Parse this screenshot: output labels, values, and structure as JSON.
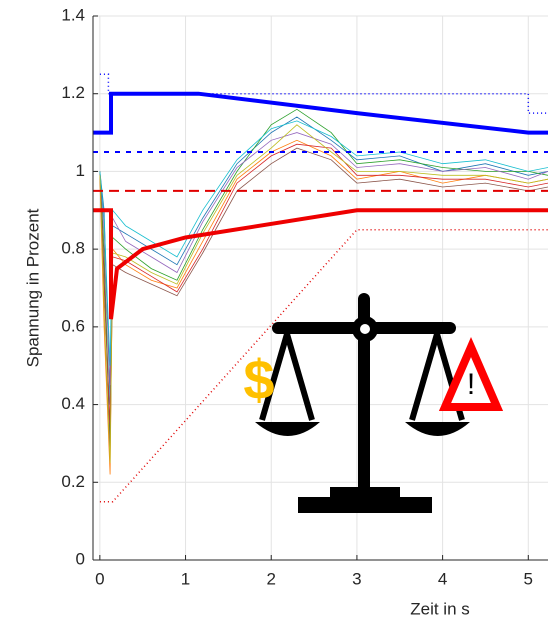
{
  "chart_data": {
    "type": "line",
    "xlabel": "Zeit in s",
    "ylabel": "Spannung  in Prozent",
    "xlim": [
      -0.08,
      5.23
    ],
    "ylim": [
      0,
      1.4
    ],
    "xticks": [
      0,
      1,
      2,
      3,
      4,
      5
    ],
    "yticks": [
      0,
      0.2,
      0.4,
      0.6,
      0.8,
      1,
      1.2,
      1.4
    ],
    "grid": true,
    "annotations": [
      "$",
      "!"
    ],
    "series": [
      {
        "color": "#1f77b4",
        "width": 0.8,
        "x": [
          0,
          0.05,
          0.12,
          0.15,
          0.3,
          0.6,
          0.9,
          1.2,
          1.6,
          2,
          2.3,
          2.7,
          3,
          3.5,
          4,
          4.5,
          5,
          5.23
        ],
        "values": [
          1.0,
          0.9,
          0.4,
          0.86,
          0.84,
          0.8,
          0.76,
          0.88,
          1.02,
          1.1,
          1.14,
          1.08,
          1.03,
          1.04,
          1.0,
          1.02,
          0.99,
          1.0
        ]
      },
      {
        "color": "#ff7f0e",
        "width": 0.8,
        "x": [
          0,
          0.05,
          0.12,
          0.15,
          0.3,
          0.6,
          0.9,
          1.2,
          1.6,
          2,
          2.3,
          2.7,
          3,
          3.5,
          4,
          4.5,
          5,
          5.23
        ],
        "values": [
          0.98,
          0.6,
          0.22,
          0.8,
          0.76,
          0.72,
          0.7,
          0.82,
          0.98,
          1.05,
          1.08,
          1.04,
          0.98,
          1.0,
          0.97,
          0.99,
          0.97,
          0.98
        ]
      },
      {
        "color": "#2ca02c",
        "width": 0.8,
        "x": [
          0,
          0.05,
          0.12,
          0.15,
          0.3,
          0.6,
          0.9,
          1.2,
          1.6,
          2,
          2.3,
          2.7,
          3,
          3.5,
          4,
          4.5,
          5,
          5.23
        ],
        "values": [
          1.0,
          0.8,
          0.3,
          0.83,
          0.8,
          0.75,
          0.72,
          0.85,
          1.0,
          1.12,
          1.16,
          1.1,
          1.02,
          1.03,
          1.01,
          1.0,
          1.0,
          0.99
        ]
      },
      {
        "color": "#d62728",
        "width": 0.8,
        "x": [
          0,
          0.05,
          0.12,
          0.15,
          0.3,
          0.6,
          0.9,
          1.2,
          1.6,
          2,
          2.3,
          2.7,
          3,
          3.5,
          4,
          4.5,
          5,
          5.23
        ],
        "values": [
          0.99,
          0.7,
          0.35,
          0.78,
          0.77,
          0.73,
          0.69,
          0.8,
          0.97,
          1.04,
          1.07,
          1.06,
          0.99,
          0.99,
          0.98,
          0.98,
          0.96,
          0.97
        ]
      },
      {
        "color": "#9467bd",
        "width": 0.8,
        "x": [
          0,
          0.05,
          0.12,
          0.15,
          0.3,
          0.6,
          0.9,
          1.2,
          1.6,
          2,
          2.3,
          2.7,
          3,
          3.5,
          4,
          4.5,
          5,
          5.23
        ],
        "values": [
          1.0,
          0.85,
          0.45,
          0.88,
          0.82,
          0.78,
          0.74,
          0.87,
          1.01,
          1.08,
          1.1,
          1.07,
          1.01,
          1.02,
          1.0,
          1.01,
          0.98,
          1.0
        ]
      },
      {
        "color": "#8c564b",
        "width": 0.8,
        "x": [
          0,
          0.05,
          0.12,
          0.15,
          0.3,
          0.6,
          0.9,
          1.2,
          1.6,
          2,
          2.3,
          2.7,
          3,
          3.5,
          4,
          4.5,
          5,
          5.23
        ],
        "values": [
          1.0,
          0.75,
          0.28,
          0.76,
          0.74,
          0.71,
          0.68,
          0.79,
          0.95,
          1.02,
          1.06,
          1.03,
          0.97,
          0.98,
          0.96,
          0.97,
          0.95,
          0.96
        ]
      },
      {
        "color": "#17becf",
        "width": 0.8,
        "x": [
          0,
          0.05,
          0.12,
          0.15,
          0.3,
          0.6,
          0.9,
          1.2,
          1.6,
          2,
          2.3,
          2.7,
          3,
          3.5,
          4,
          4.5,
          5,
          5.23
        ],
        "values": [
          1.0,
          0.88,
          0.5,
          0.9,
          0.86,
          0.82,
          0.78,
          0.9,
          1.03,
          1.11,
          1.13,
          1.09,
          1.04,
          1.05,
          1.02,
          1.03,
          1.0,
          1.01
        ]
      },
      {
        "color": "#bcbd22",
        "width": 0.8,
        "x": [
          0,
          0.05,
          0.12,
          0.15,
          0.3,
          0.6,
          0.9,
          1.2,
          1.6,
          2,
          2.3,
          2.7,
          3,
          3.5,
          4,
          4.5,
          5,
          5.23
        ],
        "values": [
          0.99,
          0.65,
          0.25,
          0.79,
          0.78,
          0.74,
          0.71,
          0.84,
          0.99,
          1.06,
          1.12,
          1.05,
          1.0,
          1.0,
          0.99,
          0.99,
          0.97,
          0.98
        ]
      },
      {
        "color": "#0000ff",
        "width": 2,
        "dash": "5 6",
        "x": [
          -0.08,
          5.23
        ],
        "values": [
          1.05,
          1.05
        ]
      },
      {
        "color": "#e00000",
        "width": 2,
        "dash": "10 6",
        "x": [
          -0.08,
          5.23
        ],
        "values": [
          0.95,
          0.95
        ]
      },
      {
        "color": "#0000ff",
        "width": 1.5,
        "dash": "1 3",
        "x": [
          0,
          0.1,
          0.1,
          5,
          5,
          5.23
        ],
        "values": [
          1.25,
          1.25,
          1.2,
          1.2,
          1.15,
          1.15
        ]
      },
      {
        "color": "#e00000",
        "width": 1.5,
        "dash": "1 3",
        "x": [
          0,
          0.15,
          3,
          5.23
        ],
        "values": [
          0.15,
          0.15,
          0.85,
          0.85
        ]
      },
      {
        "color": "#0000ff",
        "width": 4,
        "x": [
          -0.08,
          0.13,
          0.13,
          1.15,
          3,
          5,
          5.23
        ],
        "values": [
          1.1,
          1.1,
          1.2,
          1.2,
          1.15,
          1.1,
          1.1
        ]
      },
      {
        "color": "#ee0000",
        "width": 4,
        "x": [
          -0.08,
          0.13,
          0.13,
          0.2,
          0.5,
          1,
          3,
          5.23
        ],
        "values": [
          0.9,
          0.9,
          0.62,
          0.75,
          0.8,
          0.83,
          0.9,
          0.9
        ]
      }
    ]
  }
}
